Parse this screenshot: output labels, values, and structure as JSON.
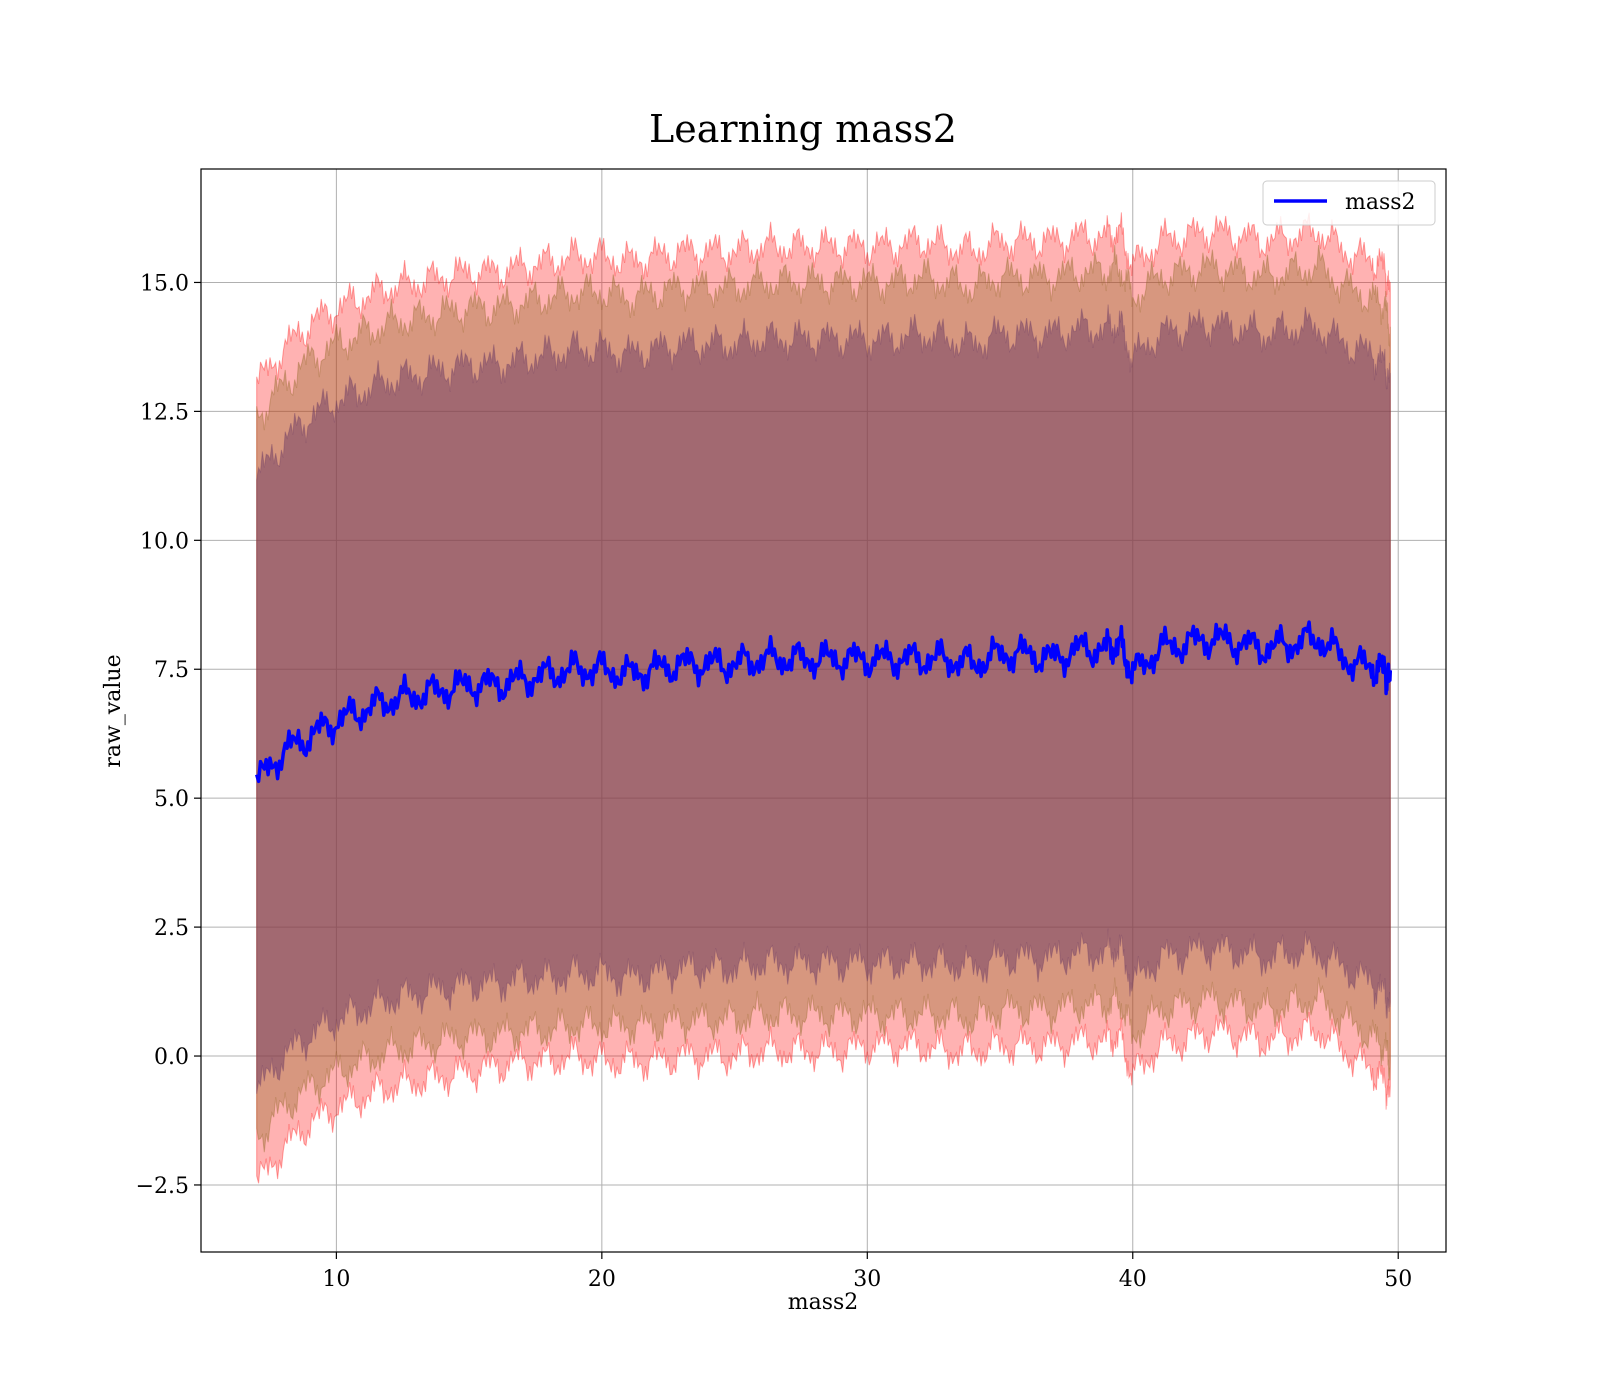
{
  "chart_data": {
    "type": "line",
    "title": "Learning mass2",
    "xlabel": "mass2",
    "ylabel": "raw_value",
    "xlim": [
      4.9,
      51.8
    ],
    "ylim": [
      -3.8,
      17.2
    ],
    "xticks": [
      10,
      20,
      30,
      40,
      50
    ],
    "xtick_labels": [
      "10",
      "20",
      "30",
      "40",
      "50"
    ],
    "yticks": [
      -2.5,
      0.0,
      2.5,
      5.0,
      7.5,
      10.0,
      12.5,
      15.0
    ],
    "ytick_labels": [
      "−2.5",
      "0.0",
      "2.5",
      "5.0",
      "7.5",
      "10.0",
      "12.5",
      "15.0"
    ],
    "grid": true,
    "legend": {
      "position": "top-right",
      "entries": [
        "mass2"
      ]
    },
    "colors": {
      "line": "#0000ff",
      "band_outer": "#ff0000",
      "band_middle": "#8c6420",
      "band_inner": "#6e3c64",
      "grid": "#b0b0b0"
    },
    "x": [
      7.0,
      8.0,
      9.0,
      10.0,
      11.0,
      12.0,
      13.0,
      14.0,
      15.0,
      16.0,
      17.0,
      18.0,
      19.0,
      20.0,
      21.0,
      22.0,
      23.0,
      24.0,
      25.0,
      26.0,
      27.0,
      28.0,
      29.0,
      30.0,
      31.0,
      32.0,
      33.0,
      34.0,
      35.0,
      36.0,
      37.0,
      38.0,
      39.0,
      39.5,
      40.0,
      41.0,
      42.0,
      43.0,
      44.0,
      45.0,
      46.0,
      47.0,
      48.0,
      49.0,
      49.5,
      49.7
    ],
    "series": [
      {
        "name": "mass2",
        "values": [
          5.3,
          5.9,
          6.2,
          6.5,
          6.7,
          6.9,
          7.0,
          7.1,
          7.2,
          7.2,
          7.3,
          7.4,
          7.5,
          7.5,
          7.4,
          7.5,
          7.6,
          7.6,
          7.6,
          7.7,
          7.7,
          7.7,
          7.7,
          7.7,
          7.7,
          7.7,
          7.7,
          7.6,
          7.8,
          7.8,
          7.7,
          7.9,
          7.9,
          8.0,
          7.4,
          7.9,
          8.0,
          8.1,
          8.0,
          7.9,
          8.0,
          8.1,
          7.7,
          7.5,
          7.5,
          7.2
        ]
      }
    ],
    "bands": [
      {
        "lower": [
          -2.5,
          -1.8,
          -1.3,
          -1.0,
          -0.8,
          -0.6,
          -0.5,
          -0.4,
          -0.3,
          -0.2,
          -0.1,
          -0.1,
          0.0,
          -0.1,
          -0.1,
          -0.1,
          0.0,
          0.0,
          0.0,
          0.1,
          0.1,
          0.1,
          0.1,
          0.2,
          0.2,
          0.2,
          0.1,
          0.1,
          0.2,
          0.2,
          0.2,
          0.3,
          0.3,
          0.4,
          -0.4,
          0.2,
          0.3,
          0.5,
          0.4,
          0.3,
          0.4,
          0.5,
          0.1,
          -0.3,
          -0.5,
          -0.9
        ],
        "upper": [
          13.0,
          13.7,
          14.2,
          14.5,
          14.7,
          14.9,
          15.0,
          15.1,
          15.2,
          15.2,
          15.3,
          15.4,
          15.5,
          15.5,
          15.4,
          15.5,
          15.6,
          15.6,
          15.6,
          15.7,
          15.7,
          15.7,
          15.7,
          15.7,
          15.7,
          15.8,
          15.7,
          15.6,
          15.8,
          15.8,
          15.8,
          15.9,
          15.9,
          16.0,
          15.3,
          15.8,
          15.9,
          16.0,
          15.9,
          15.8,
          15.9,
          16.0,
          15.6,
          15.4,
          15.3,
          14.7
        ]
      },
      {
        "lower": [
          -1.6,
          -1.0,
          -0.6,
          -0.3,
          -0.1,
          0.1,
          0.2,
          0.3,
          0.4,
          0.4,
          0.5,
          0.5,
          0.6,
          0.6,
          0.6,
          0.6,
          0.7,
          0.7,
          0.7,
          0.8,
          0.8,
          0.8,
          0.8,
          0.8,
          0.8,
          0.8,
          0.8,
          0.7,
          0.9,
          0.9,
          0.9,
          1.0,
          1.0,
          1.1,
          0.4,
          0.9,
          1.0,
          1.1,
          1.0,
          0.9,
          1.0,
          1.1,
          0.7,
          0.4,
          0.2,
          -0.2
        ],
        "upper": [
          12.4,
          13.0,
          13.5,
          13.8,
          14.0,
          14.2,
          14.3,
          14.4,
          14.5,
          14.5,
          14.6,
          14.7,
          14.8,
          14.8,
          14.7,
          14.8,
          14.9,
          14.9,
          14.9,
          15.0,
          15.0,
          15.0,
          15.0,
          15.0,
          15.0,
          15.1,
          15.0,
          14.9,
          15.1,
          15.1,
          15.1,
          15.2,
          15.2,
          15.3,
          14.7,
          15.1,
          15.2,
          15.3,
          15.2,
          15.1,
          15.2,
          15.3,
          14.9,
          14.7,
          14.6,
          14.0
        ]
      },
      {
        "lower": [
          -0.7,
          0.0,
          0.4,
          0.7,
          0.9,
          1.1,
          1.2,
          1.3,
          1.4,
          1.4,
          1.5,
          1.5,
          1.6,
          1.6,
          1.5,
          1.6,
          1.7,
          1.7,
          1.7,
          1.8,
          1.8,
          1.8,
          1.8,
          1.8,
          1.8,
          1.8,
          1.8,
          1.7,
          1.9,
          1.9,
          1.9,
          2.0,
          2.0,
          2.1,
          1.4,
          1.9,
          2.0,
          2.1,
          2.0,
          1.9,
          2.0,
          2.0,
          1.7,
          1.4,
          1.2,
          0.8
        ],
        "upper": [
          11.2,
          11.9,
          12.4,
          12.7,
          12.9,
          13.1,
          13.2,
          13.3,
          13.4,
          13.4,
          13.5,
          13.6,
          13.7,
          13.7,
          13.6,
          13.7,
          13.8,
          13.8,
          13.8,
          13.9,
          13.9,
          13.9,
          13.9,
          13.9,
          13.9,
          14.0,
          13.9,
          13.8,
          14.0,
          14.0,
          14.0,
          14.1,
          14.1,
          14.2,
          13.5,
          14.0,
          14.1,
          14.2,
          14.1,
          14.0,
          14.1,
          14.1,
          13.8,
          13.6,
          13.4,
          13.0
        ]
      }
    ]
  }
}
